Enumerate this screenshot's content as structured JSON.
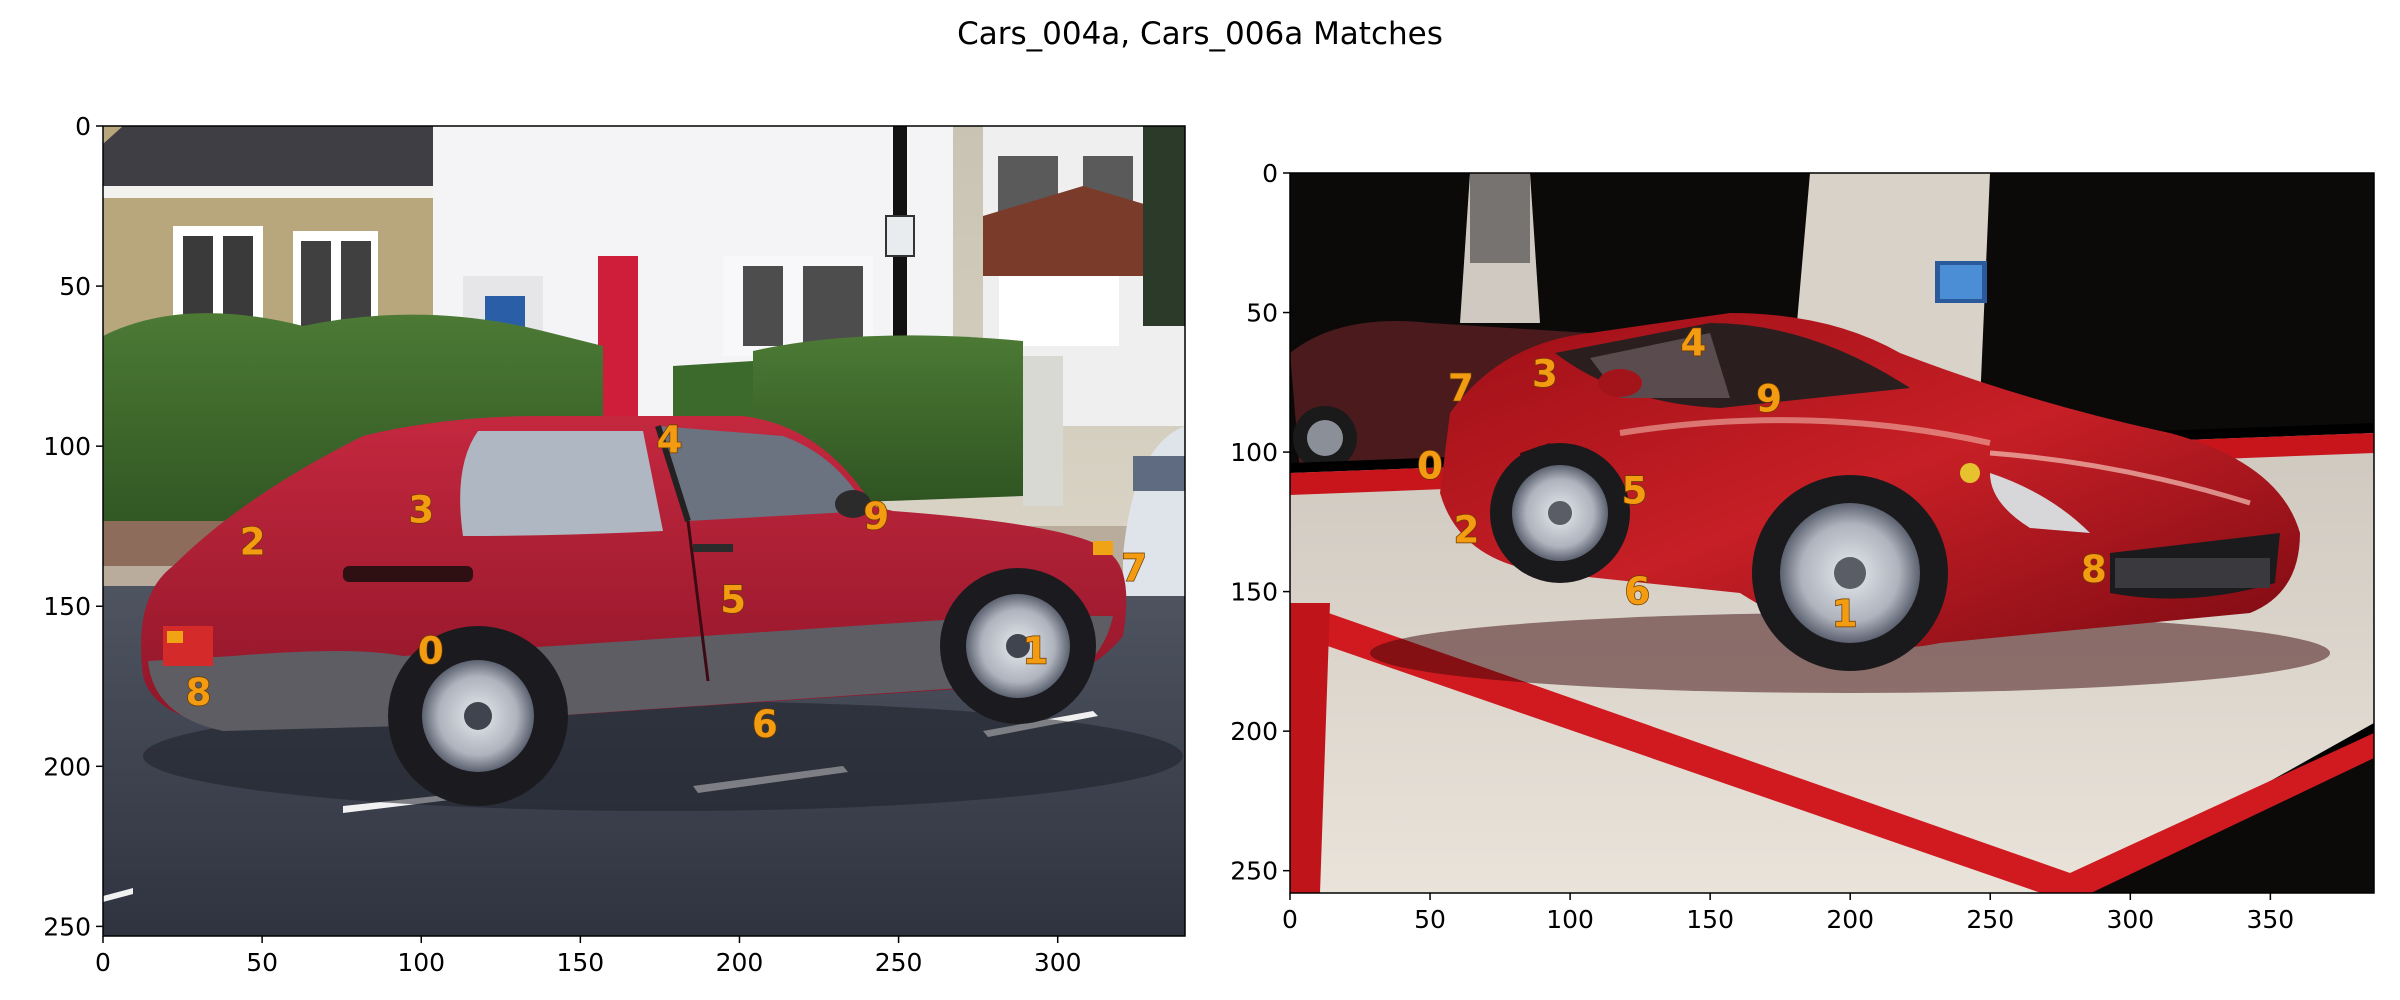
{
  "figure": {
    "title": "Cars_004a, Cars_006a Matches"
  },
  "panels": [
    {
      "name": "Cars_004a",
      "scene": "red hatchback parked on a residential street in front of white houses and a hedge",
      "xlim": [
        0,
        340
      ],
      "ylim": [
        253,
        0
      ],
      "xticks": [
        0,
        50,
        100,
        150,
        200,
        250,
        300
      ],
      "yticks": [
        0,
        50,
        100,
        150,
        200,
        250
      ],
      "keypoints": [
        {
          "label": "0",
          "x": 103,
          "y": 164
        },
        {
          "label": "1",
          "x": 293,
          "y": 164
        },
        {
          "label": "2",
          "x": 47,
          "y": 130
        },
        {
          "label": "3",
          "x": 100,
          "y": 120
        },
        {
          "label": "4",
          "x": 178,
          "y": 98
        },
        {
          "label": "5",
          "x": 198,
          "y": 148
        },
        {
          "label": "6",
          "x": 208,
          "y": 187
        },
        {
          "label": "7",
          "x": 324,
          "y": 138
        },
        {
          "label": "8",
          "x": 30,
          "y": 177
        },
        {
          "label": "9",
          "x": 243,
          "y": 122
        }
      ]
    },
    {
      "name": "Cars_006a",
      "scene": "red sports car on a show stand with red and white platform, dark background",
      "xlim": [
        0,
        387
      ],
      "ylim": [
        258,
        0
      ],
      "xticks": [
        0,
        50,
        100,
        150,
        200,
        250,
        300,
        350
      ],
      "yticks": [
        0,
        50,
        100,
        150,
        200,
        250
      ],
      "keypoints": [
        {
          "label": "0",
          "x": 50,
          "y": 105
        },
        {
          "label": "1",
          "x": 198,
          "y": 158
        },
        {
          "label": "2",
          "x": 63,
          "y": 128
        },
        {
          "label": "3",
          "x": 91,
          "y": 72
        },
        {
          "label": "4",
          "x": 144,
          "y": 61
        },
        {
          "label": "5",
          "x": 123,
          "y": 114
        },
        {
          "label": "6",
          "x": 124,
          "y": 150
        },
        {
          "label": "7",
          "x": 61,
          "y": 77
        },
        {
          "label": "8",
          "x": 287,
          "y": 142
        },
        {
          "label": "9",
          "x": 171,
          "y": 81
        }
      ]
    }
  ],
  "colors": {
    "keypoint_label": "#f39c12",
    "car_red": "#c0152a"
  }
}
